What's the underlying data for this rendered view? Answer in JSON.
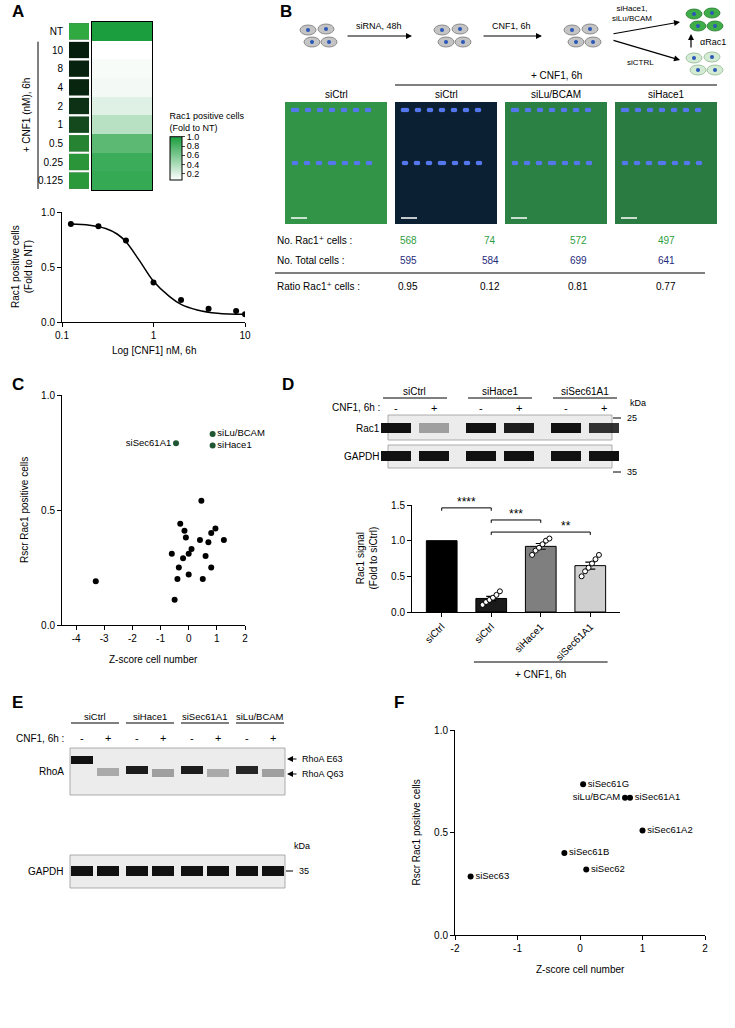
{
  "panel_letters": [
    "A",
    "B",
    "C",
    "D",
    "E",
    "F"
  ],
  "chart_data": [
    {
      "type": "heatmap",
      "categories": [
        "NT",
        "10",
        "8",
        "4",
        "2",
        "1",
        "0.5",
        "0.25",
        "0.125"
      ],
      "values": [
        1.0,
        0.07,
        0.1,
        0.12,
        0.2,
        0.36,
        0.74,
        0.87,
        0.89
      ],
      "tick_labels": "y",
      "annotations": [
        {
          "text": "+ CNF1 (nM), 6h"
        }
      ],
      "colorbar": {
        "title": "Rac1 positive cells (Fold to NT)",
        "zlim": [
          0.07,
          1.0
        ],
        "ticks": [
          0.2,
          0.4,
          0.6,
          0.8,
          {
            "value": 1.0,
            "label": "1.0"
          }
        ]
      }
    },
    {
      "type": "scatter",
      "x": [
        0.125,
        0.25,
        0.5,
        1,
        2,
        4,
        8,
        10
      ],
      "values": [
        0.89,
        0.87,
        0.74,
        0.36,
        0.2,
        0.12,
        0.1,
        0.07
      ],
      "fit": {
        "x": [
          0.125,
          0.2,
          0.3,
          0.4,
          0.5,
          0.7,
          1,
          1.5,
          2,
          3,
          5,
          10
        ],
        "values": [
          0.89,
          0.88,
          0.85,
          0.8,
          0.73,
          0.56,
          0.37,
          0.23,
          0.16,
          0.11,
          0.08,
          0.07
        ]
      },
      "log": "x",
      "xlim": [
        0.1,
        10
      ],
      "xticks": [
        0.1,
        1,
        10
      ],
      "ylim": [
        0,
        1
      ],
      "yticks": [
        {
          "value": 0,
          "label": "0.0"
        },
        {
          "value": 0.5,
          "label": "0.5"
        },
        {
          "value": 1,
          "label": "1.0"
        }
      ],
      "x_label": "Log [CNF1] nM, 6h",
      "y_label": "Rac1 positive cells (Fold to NT)",
      "grid": false
    },
    {
      "type": "scatter",
      "series": [
        {
          "color": "#000000",
          "x": [
            -3.3,
            -0.6,
            -0.5,
            -0.4,
            -0.35,
            -0.3,
            -0.2,
            -0.15,
            -0.1,
            0.0,
            0.0,
            0.1,
            0.4,
            0.45,
            0.5,
            0.6,
            0.7,
            0.8,
            0.8,
            0.95,
            1.25
          ],
          "values": [
            0.19,
            0.31,
            0.11,
            0.2,
            0.25,
            0.44,
            0.29,
            0.41,
            0.38,
            0.22,
            0.31,
            0.33,
            0.37,
            0.54,
            0.2,
            0.3,
            0.36,
            0.25,
            0.4,
            0.42,
            0.37
          ]
        },
        {
          "color": "#1e5631",
          "x": [
            -0.45,
            0.85,
            0.85
          ],
          "values": [
            0.79,
            0.83,
            0.78
          ],
          "labels": [
            "siSec61A1",
            "siLu/BCAM",
            "siHace1"
          ]
        }
      ],
      "xlim": [
        -4.5,
        2
      ],
      "xticks": [
        -4,
        -3,
        -2,
        -1,
        0,
        1,
        2
      ],
      "ylim": [
        0,
        1
      ],
      "yticks": [
        {
          "value": 0,
          "label": "0.0"
        },
        {
          "value": 0.5,
          "label": "0.5"
        },
        {
          "value": 1,
          "label": "1.0"
        }
      ],
      "x_label": "Z-score cell number",
      "y_label": "Rscr Rac1 positive cells",
      "grid": false
    },
    {
      "type": "bar",
      "categories": [
        "siCtrl",
        "siCtrl",
        "siHace1",
        "siSec61A1"
      ],
      "values": [
        1.0,
        0.19,
        0.92,
        0.65
      ],
      "errors": [
        null,
        0.03,
        0.04,
        0.05
      ],
      "points": [
        null,
        [
          0.1,
          0.14,
          0.17,
          0.2,
          0.24,
          0.29
        ],
        [
          0.8,
          0.86,
          0.9,
          0.95,
          1.0,
          1.03
        ],
        [
          0.5,
          0.57,
          0.62,
          0.68,
          0.74,
          0.8
        ]
      ],
      "colors": [
        "#000000",
        "#1a1a1a",
        "#7f7f7f",
        "#d0d0d0"
      ],
      "ylim": [
        0,
        1.5
      ],
      "yticks": [
        {
          "value": 0,
          "label": "0.0"
        },
        {
          "value": 0.5,
          "label": "0.5"
        },
        {
          "value": 1,
          "label": "1.0"
        },
        {
          "value": 1.5,
          "label": "1.5"
        }
      ],
      "y_label": "Rac1 signal (Fold to siCtrl)",
      "comparisons": [
        {
          "from": 0,
          "to": 1,
          "label": "****"
        },
        {
          "from": 1,
          "to": 2,
          "label": "***"
        },
        {
          "from": 1,
          "to": 3,
          "label": "**"
        }
      ],
      "annotations": [
        {
          "text": "+ CNF1, 6h",
          "from": 1,
          "to": 3
        }
      ],
      "grid": false
    },
    {
      "type": "scatter",
      "series": [
        {
          "color": "#000000",
          "x": [
            0.05,
            0.72,
            0.8,
            1.0,
            -0.25,
            0.1,
            -1.75
          ],
          "values": [
            0.735,
            0.67,
            0.67,
            0.51,
            0.4,
            0.32,
            0.285
          ],
          "labels": [
            "siSec61G",
            "siLu/BCAM",
            "siSec61A1",
            "siSec61A2",
            "siSec61B",
            "siSec62",
            "siSec63"
          ]
        }
      ],
      "xlim": [
        -2,
        2
      ],
      "xticks": [
        -2,
        -1,
        0,
        1,
        2
      ],
      "ylim": [
        0,
        1
      ],
      "yticks": [
        {
          "value": 0,
          "label": "0.0"
        },
        {
          "value": 0.5,
          "label": "0.5"
        },
        {
          "value": 1,
          "label": "1.0"
        }
      ],
      "x_label": "Z-score cell number",
      "y_label": "Rscr Rac1 positive cells",
      "grid": false
    }
  ],
  "panel_B": {
    "schematic": {
      "steps": [
        "siRNA, 48h",
        "CNF1, 6h"
      ],
      "branches": [
        "siHace1, siLu/BCAM",
        "siCTRL"
      ],
      "stain": "αRac1"
    },
    "images": {
      "columns": [
        "siCtrl",
        "siCtrl",
        "siLu/BCAM",
        "siHace1"
      ],
      "group_label": {
        "text": "+ CNF1, 6h",
        "from": 1,
        "to": 3
      }
    },
    "table": {
      "rows": [
        {
          "label": "No. Rac1⁺ cells :",
          "values": [
            568,
            74,
            572,
            497
          ]
        },
        {
          "label": "No. Total cells :",
          "values": [
            595,
            584,
            699,
            641
          ]
        },
        {
          "label": "Ratio Rac1⁺ cells :",
          "values": [
            0.95,
            0.12,
            0.81,
            0.77
          ]
        }
      ]
    }
  },
  "panel_D_blot": {
    "groups": [
      "siCtrl",
      "siHace1",
      "siSec61A1"
    ],
    "treatment_label": "CNF1, 6h :",
    "lanes": [
      "-",
      "+",
      "-",
      "+",
      "-",
      "+"
    ],
    "rows": [
      "Rac1",
      "GAPDH"
    ],
    "marker_label": "kDa",
    "markers": [
      25,
      35
    ]
  },
  "panel_E_blot": {
    "groups": [
      "siCtrl",
      "siHace1",
      "siSec61A1",
      "siLu/BCAM"
    ],
    "treatment_label": "CNF1, 6h :",
    "lanes": [
      "-",
      "+",
      "-",
      "+",
      "-",
      "+",
      "-",
      "+"
    ],
    "rows": [
      "RhoA",
      "GAPDH"
    ],
    "band_labels": [
      "RhoA E63",
      "RhoA Q63"
    ],
    "marker_label": "kDa",
    "markers": [
      35
    ]
  }
}
